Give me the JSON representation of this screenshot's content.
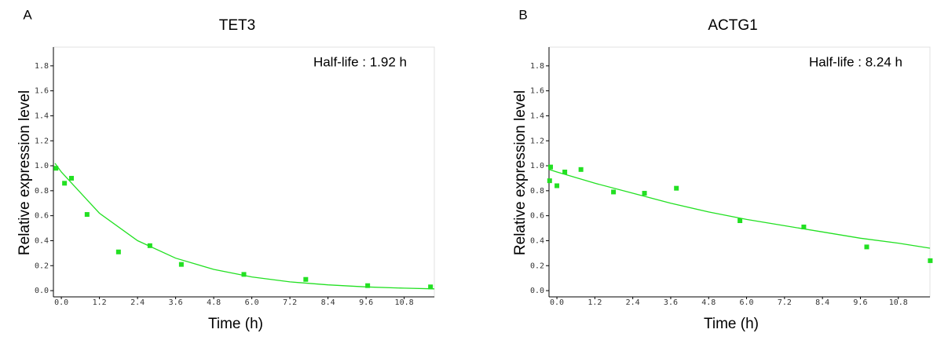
{
  "chart_data": [
    {
      "type": "scatter",
      "panel_label": "A",
      "title": "TET3",
      "annotation": "Half-life : 1.92 h",
      "xlabel": "Time (h)",
      "ylabel": "Relative expression level",
      "color": "#22e022",
      "x": [
        -0.17,
        0.1,
        0.32,
        0.81,
        1.8,
        2.79,
        3.78,
        5.75,
        7.7,
        9.65,
        11.63
      ],
      "values": [
        0.98,
        0.86,
        0.9,
        0.61,
        0.31,
        0.36,
        0.21,
        0.13,
        0.09,
        0.04,
        0.03
      ],
      "fit": {
        "x": [
          -0.2,
          0,
          1.2,
          2.4,
          3.6,
          4.8,
          6.0,
          7.2,
          8.4,
          9.6,
          10.8,
          11.75
        ],
        "values": [
          1.02,
          0.95,
          0.62,
          0.4,
          0.26,
          0.17,
          0.11,
          0.07,
          0.046,
          0.03,
          0.02,
          0.014
        ]
      },
      "xlim": [
        -0.25,
        11.75
      ],
      "ylim": [
        -0.05,
        1.95
      ],
      "xticks": [
        {
          "value": 0,
          "label": "0.0"
        },
        1.2,
        2.4,
        3.6,
        4.8,
        {
          "value": 6,
          "label": "6.0"
        },
        7.2,
        8.4,
        9.6,
        10.8
      ],
      "yticks": [
        {
          "value": 0,
          "label": "0.0"
        },
        0.2,
        0.4,
        0.6,
        0.8,
        {
          "value": 1,
          "label": "1.0"
        },
        1.2,
        1.4,
        1.6,
        1.8
      ]
    },
    {
      "type": "scatter",
      "panel_label": "B",
      "title": "ACTG1",
      "annotation": "Half-life : 8.24 h",
      "xlabel": "Time (h)",
      "ylabel": "Relative expression level",
      "color": "#22e022",
      "x": [
        -0.23,
        -0.2,
        0,
        0.25,
        0.76,
        1.79,
        2.77,
        3.78,
        5.79,
        7.81,
        9.8,
        11.81
      ],
      "values": [
        0.88,
        0.99,
        0.84,
        0.95,
        0.97,
        0.79,
        0.78,
        0.82,
        0.56,
        0.51,
        0.35,
        0.24
      ],
      "fit": {
        "x": [
          -0.25,
          0,
          1.2,
          2.4,
          3.6,
          4.8,
          6.0,
          7.2,
          8.4,
          9.6,
          10.8,
          11.8
        ],
        "values": [
          0.97,
          0.95,
          0.86,
          0.78,
          0.7,
          0.63,
          0.57,
          0.52,
          0.47,
          0.42,
          0.38,
          0.34
        ]
      },
      "xlim": [
        -0.25,
        11.8
      ],
      "ylim": [
        -0.05,
        1.95
      ],
      "xticks": [
        {
          "value": 0,
          "label": "0.0"
        },
        1.2,
        2.4,
        3.6,
        4.8,
        {
          "value": 6,
          "label": "6.0"
        },
        7.2,
        8.4,
        9.6,
        10.8
      ],
      "yticks": [
        {
          "value": 0,
          "label": "0.0"
        },
        0.2,
        0.4,
        0.6,
        0.8,
        {
          "value": 1,
          "label": "1.0"
        },
        1.2,
        1.4,
        1.6,
        1.8
      ]
    }
  ]
}
